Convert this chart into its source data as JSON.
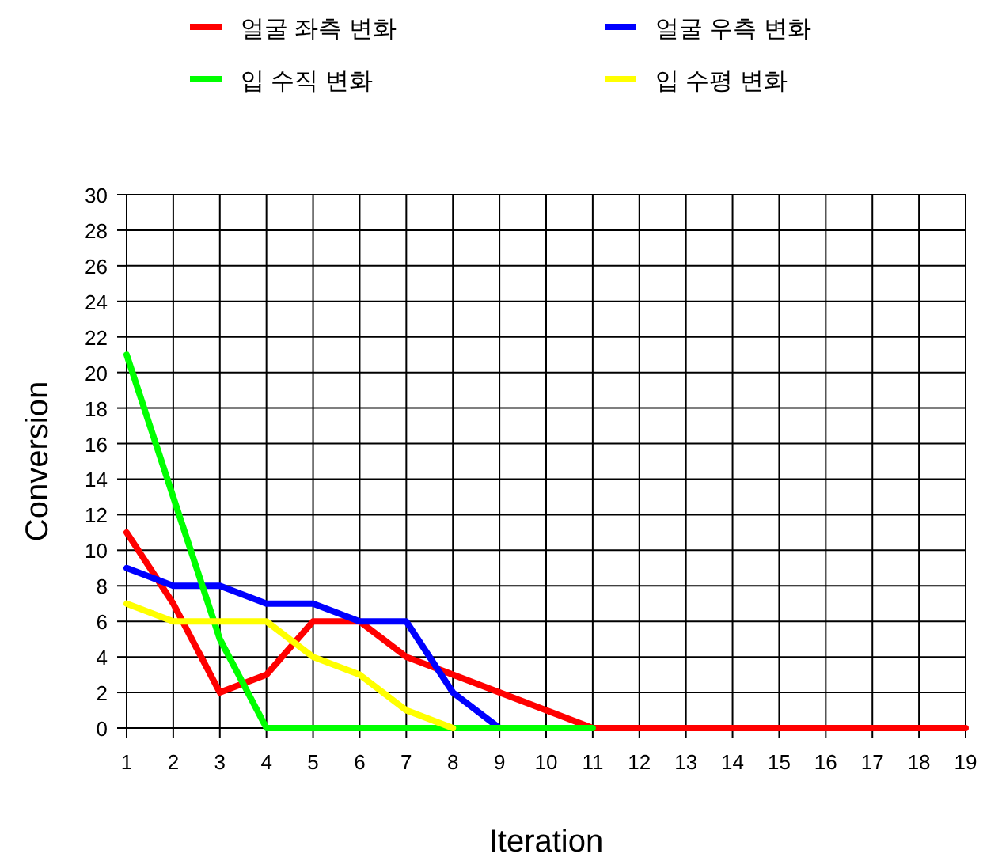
{
  "chart_data": {
    "type": "line",
    "xlabel": "Iteration",
    "ylabel": "Conversion",
    "x": [
      1,
      2,
      3,
      4,
      5,
      6,
      7,
      8,
      9,
      10,
      11,
      12,
      13,
      14,
      15,
      16,
      17,
      18,
      19
    ],
    "xlim": [
      1,
      19
    ],
    "xticks": [
      1,
      2,
      3,
      4,
      5,
      6,
      7,
      8,
      9,
      10,
      11,
      12,
      13,
      14,
      15,
      16,
      17,
      18,
      19
    ],
    "ylim": [
      0,
      30
    ],
    "yticks": [
      0,
      2,
      4,
      6,
      8,
      10,
      12,
      14,
      16,
      18,
      20,
      22,
      24,
      26,
      28,
      30
    ],
    "grid": true,
    "legend": "top",
    "marker": "none",
    "line_style": "solid",
    "series": [
      {
        "name": "얼굴 좌측 변화",
        "color": "#ff0000",
        "values": [
          11,
          7,
          2,
          3,
          6,
          6,
          4,
          3,
          2,
          1,
          0,
          0,
          0,
          0,
          0,
          0,
          0,
          0,
          0
        ]
      },
      {
        "name": "얼굴 우측 변화",
        "color": "#0000ff",
        "values": [
          9,
          8,
          8,
          7,
          7,
          6,
          6,
          2,
          0,
          null,
          null,
          null,
          null,
          null,
          null,
          null,
          null,
          null,
          null
        ]
      },
      {
        "name": "입 수직 변화",
        "color": "#00ff00",
        "values": [
          21,
          13,
          5,
          0,
          0,
          0,
          0,
          0,
          0,
          0,
          0,
          null,
          null,
          null,
          null,
          null,
          null,
          null,
          null
        ]
      },
      {
        "name": "입 수평 변화",
        "color": "#ffff00",
        "values": [
          7,
          6,
          6,
          6,
          4,
          3,
          1,
          0,
          null,
          null,
          null,
          null,
          null,
          null,
          null,
          null,
          null,
          null,
          null
        ]
      }
    ]
  }
}
